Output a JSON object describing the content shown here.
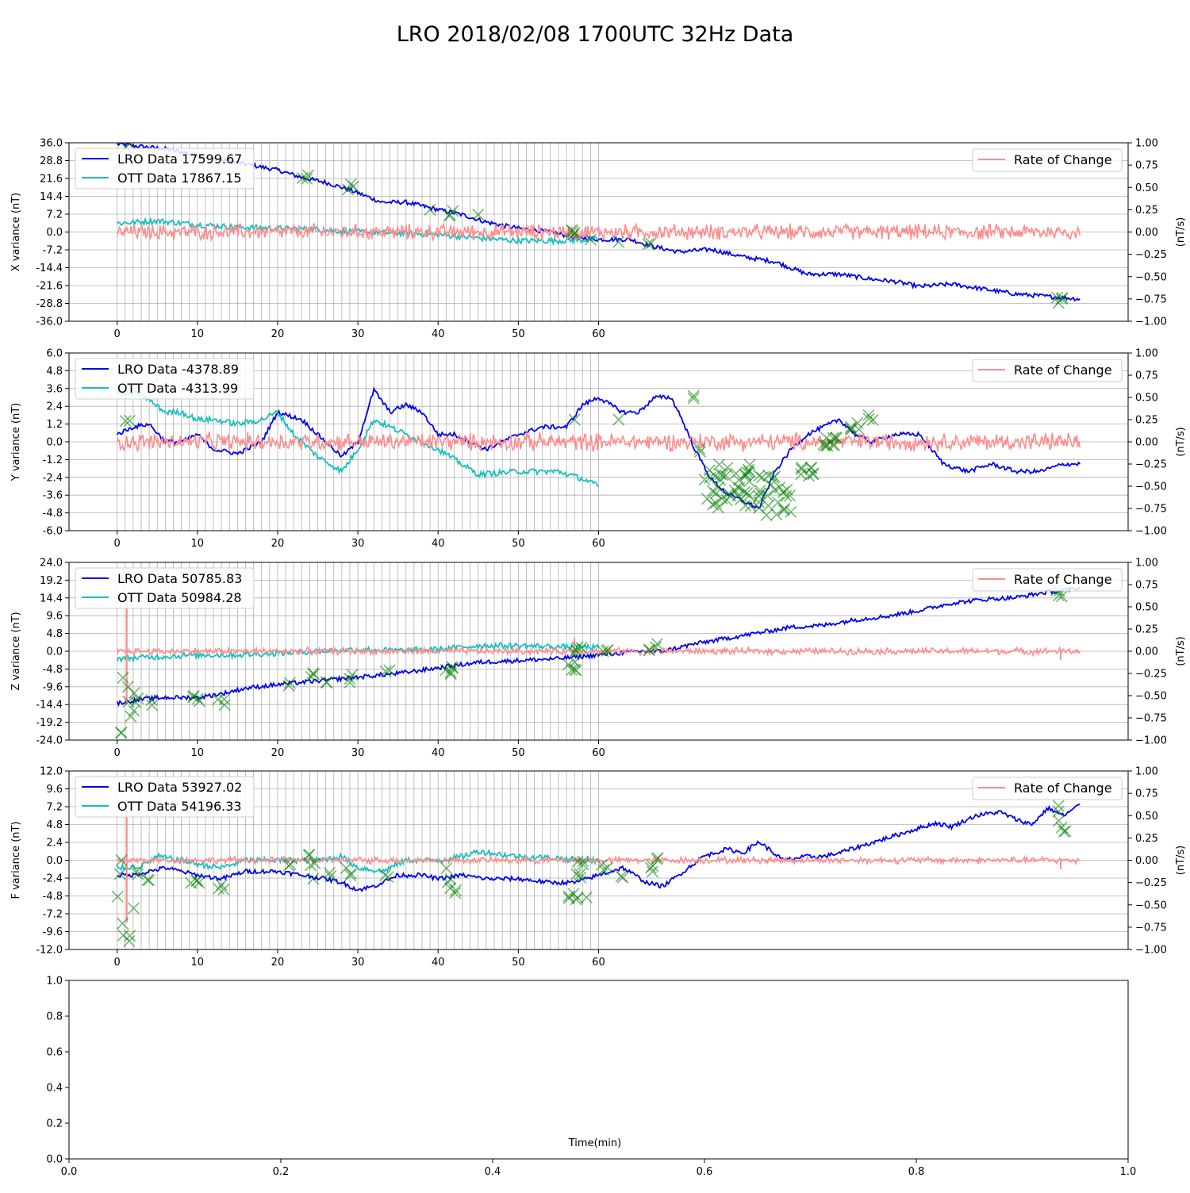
{
  "figure": {
    "title": "LRO 2018/02/08 1700UTC 32Hz Data"
  },
  "colors": {
    "lro": "#0000ee",
    "ott": "#17bfbf",
    "rate": "#ff8c8c",
    "marker": "#008000",
    "grid": "#b0b0b0"
  },
  "chart_data": [
    {
      "type": "line",
      "ylabel": "X variance (nT)",
      "y2label": "(nT/s)",
      "ylim": [
        -36.0,
        36.0
      ],
      "yticks": [
        "36.0",
        "28.8",
        "21.6",
        "14.4",
        "7.2",
        "0.0",
        "-7.2",
        "-14.4",
        "-21.6",
        "-28.8",
        "-36.0"
      ],
      "y2lim": [
        -1.0,
        1.0
      ],
      "y2ticks": [
        "1.00",
        "0.75",
        "0.50",
        "0.25",
        "0.00",
        "−0.25",
        "−0.50",
        "−0.75",
        "−1.00"
      ],
      "xticks": [
        "0",
        "10",
        "20",
        "30",
        "40",
        "50",
        "60"
      ],
      "xlim": [
        -6,
        126
      ],
      "grid": true,
      "legend_left": [
        "LRO Data 17599.67",
        "OTT Data 17867.15"
      ],
      "legend_right": [
        "Rate of Change"
      ],
      "series": [
        {
          "name": "LRO Data 17599.67",
          "role": "lro",
          "x": [
            0,
            3,
            6,
            10,
            15,
            20,
            23,
            26,
            29,
            33,
            36,
            40,
            43,
            46,
            50,
            54,
            57,
            60,
            64,
            67,
            70,
            74,
            78,
            82,
            86,
            90,
            94,
            97,
            100,
            104,
            108,
            112,
            116,
            120
          ],
          "y": [
            35.5,
            34.5,
            33.5,
            31,
            28,
            25,
            22,
            20,
            17,
            12,
            12,
            9,
            7,
            4,
            1.5,
            0,
            -2,
            -3,
            -3,
            -6,
            -8,
            -7,
            -10,
            -12,
            -17,
            -17,
            -19,
            -20,
            -22,
            -21,
            -23,
            -25,
            -26,
            -27
          ]
        },
        {
          "name": "OTT Data 17867.15",
          "role": "ott",
          "x": [
            0,
            5,
            10,
            15,
            20,
            25,
            30,
            35,
            40,
            45,
            50,
            55,
            60
          ],
          "y": [
            3.5,
            4.5,
            3,
            2,
            1.5,
            1,
            0,
            -0.5,
            -1,
            -2.5,
            -3.5,
            -3.5,
            -3
          ]
        },
        {
          "name": "Rate of Change",
          "role": "rate",
          "amplitude": 0.07,
          "xmax": 120,
          "center": 0,
          "spikes": []
        }
      ],
      "markers": [
        {
          "x": 1.4,
          "y": 34.5,
          "n": 2
        },
        {
          "x": 23.5,
          "y": 21.5,
          "n": 3
        },
        {
          "x": 29,
          "y": 17.5,
          "n": 3
        },
        {
          "x": 39,
          "y": 9,
          "n": 1
        },
        {
          "x": 41.5,
          "y": 7,
          "n": 3
        },
        {
          "x": 45,
          "y": 7,
          "n": 1
        },
        {
          "x": 57,
          "y": -1,
          "n": 4
        },
        {
          "x": 59,
          "y": -3,
          "n": 1
        },
        {
          "x": 62.5,
          "y": -4,
          "n": 1
        },
        {
          "x": 66.5,
          "y": -5.5,
          "n": 2
        },
        {
          "x": 117.5,
          "y": -27,
          "n": 4
        }
      ]
    },
    {
      "type": "line",
      "ylabel": "Y variance (nT)",
      "y2label": "(nT/s)",
      "ylim": [
        -6.0,
        6.0
      ],
      "yticks": [
        "6.0",
        "4.8",
        "3.6",
        "2.4",
        "1.2",
        "0.0",
        "-1.2",
        "-2.4",
        "-3.6",
        "-4.8",
        "-6.0"
      ],
      "y2lim": [
        -1.0,
        1.0
      ],
      "y2ticks": [
        "1.00",
        "0.75",
        "0.50",
        "0.25",
        "0.00",
        "−0.25",
        "−0.50",
        "−0.75",
        "−1.00"
      ],
      "xticks": [
        "0",
        "10",
        "20",
        "30",
        "40",
        "50",
        "60"
      ],
      "xlim": [
        -6,
        126
      ],
      "grid": true,
      "legend_left": [
        "LRO Data -4378.89",
        "OTT Data -4313.99"
      ],
      "legend_right": [
        "Rate of Change"
      ],
      "series": [
        {
          "name": "LRO Data -4378.89",
          "role": "lro",
          "x": [
            0,
            2,
            4,
            6,
            8,
            10,
            12,
            15,
            18,
            20,
            23,
            26,
            28,
            30,
            32,
            34,
            36,
            38,
            40,
            42,
            44,
            46,
            48,
            50,
            53,
            56,
            58,
            60,
            63,
            65,
            67,
            69,
            70,
            72,
            74,
            76,
            78,
            80,
            82,
            84,
            86,
            88,
            90,
            92,
            94,
            97,
            100,
            103,
            106,
            109,
            112,
            115,
            118,
            120
          ],
          "y": [
            0.5,
            1,
            1.2,
            0,
            0,
            0.5,
            -0.5,
            -0.8,
            0,
            2,
            1.5,
            0,
            -1,
            0,
            3.5,
            2,
            2.5,
            2,
            0.5,
            0.5,
            0,
            -0.5,
            0,
            0.5,
            1,
            1,
            2.5,
            3,
            2,
            2,
            3,
            3,
            2,
            -0.5,
            -2.5,
            -3.5,
            -4,
            -4.5,
            -2,
            -0.5,
            0.5,
            1,
            1.5,
            0.5,
            0,
            0.5,
            0.5,
            -1.5,
            -2,
            -1.5,
            -2,
            -2,
            -1.5,
            -1.5
          ]
        },
        {
          "name": "OTT Data -4313.99",
          "role": "ott",
          "x": [
            0,
            3,
            6,
            8,
            10,
            12,
            15,
            18,
            20,
            22,
            25,
            28,
            30,
            32,
            34,
            36,
            40,
            45,
            50,
            55,
            58,
            60
          ],
          "y": [
            3.3,
            3.2,
            2,
            2,
            1.5,
            1.5,
            1.2,
            1.5,
            2,
            0.5,
            -1,
            -2,
            -0.5,
            1.5,
            1,
            0.5,
            -0.5,
            -2.2,
            -2,
            -2,
            -2.5,
            -3
          ]
        },
        {
          "name": "Rate of Change",
          "role": "rate",
          "amplitude": 0.08,
          "xmax": 120,
          "center": 0,
          "spikes": []
        }
      ],
      "markers": [
        {
          "x": 1.2,
          "y": 1.6,
          "n": 2
        },
        {
          "x": 57,
          "y": 1.5,
          "n": 1
        },
        {
          "x": 62.5,
          "y": 1.5,
          "n": 1
        },
        {
          "x": 71.5,
          "y": 3,
          "n": 2
        },
        {
          "x": 72.5,
          "y": -0.5,
          "n": 2
        },
        {
          "x": 76,
          "y": -3,
          "n": 40,
          "spread": 3
        },
        {
          "x": 82,
          "y": -3.5,
          "n": 25,
          "spread": 3
        },
        {
          "x": 86,
          "y": -2,
          "n": 8
        },
        {
          "x": 89,
          "y": 0,
          "n": 10
        },
        {
          "x": 92,
          "y": 1,
          "n": 5
        },
        {
          "x": 94,
          "y": 1.6,
          "n": 3
        }
      ]
    },
    {
      "type": "line",
      "ylabel": "Z variance (nT)",
      "y2label": "(nT/s)",
      "ylim": [
        -24.0,
        24.0
      ],
      "yticks": [
        "24.0",
        "19.2",
        "14.4",
        "9.6",
        "4.8",
        "0.0",
        "-4.8",
        "-9.6",
        "-14.4",
        "-19.2",
        "-24.0"
      ],
      "y2lim": [
        -1.0,
        1.0
      ],
      "y2ticks": [
        "1.00",
        "0.75",
        "0.50",
        "0.25",
        "0.00",
        "−0.25",
        "−0.50",
        "−0.75",
        "−1.00"
      ],
      "xticks": [
        "0",
        "10",
        "20",
        "30",
        "40",
        "50",
        "60"
      ],
      "xlim": [
        -6,
        126
      ],
      "grid": true,
      "legend_left": [
        "LRO Data 50785.83",
        "OTT Data 50984.28"
      ],
      "legend_right": [
        "Rate of Change"
      ],
      "series": [
        {
          "name": "LRO Data 50785.83",
          "role": "lro",
          "x": [
            0,
            3,
            6,
            10,
            13,
            16,
            20,
            25,
            30,
            35,
            40,
            45,
            50,
            55,
            60,
            65,
            68,
            72,
            76,
            80,
            84,
            88,
            92,
            96,
            100,
            104,
            108,
            112,
            116,
            120
          ],
          "y": [
            -14,
            -13,
            -12.5,
            -12.5,
            -11.5,
            -10,
            -9,
            -8,
            -7,
            -6,
            -4.5,
            -3,
            -2.5,
            -2,
            -1,
            0,
            0,
            2,
            3.5,
            5,
            6.5,
            7,
            8.5,
            9.5,
            11,
            13,
            14,
            14.5,
            16,
            17
          ]
        },
        {
          "name": "OTT Data 50984.28",
          "role": "ott",
          "x": [
            0,
            5,
            10,
            15,
            20,
            25,
            30,
            35,
            40,
            45,
            50,
            55,
            60
          ],
          "y": [
            -2,
            -1.5,
            -1,
            -1,
            -0.5,
            0,
            0.5,
            0.2,
            0.5,
            1.5,
            1.5,
            1.2,
            1
          ]
        },
        {
          "name": "Rate of Change",
          "role": "rate",
          "amplitude": 0.03,
          "xmax": 120,
          "center": 0,
          "spikes": [
            {
              "x": 1.2,
              "v": 0.6
            },
            {
              "x": 1.2,
              "v": -0.6
            },
            {
              "x": 57,
              "v": 0.15
            },
            {
              "x": 117.6,
              "v": -0.1
            }
          ]
        }
      ],
      "markers": [
        {
          "x": 1.2,
          "y": -18,
          "n": 10,
          "spread": 6
        },
        {
          "x": 2.5,
          "y": -13,
          "n": 2
        },
        {
          "x": 4,
          "y": -13.5,
          "n": 2
        },
        {
          "x": 9.7,
          "y": -13,
          "n": 4
        },
        {
          "x": 13,
          "y": -13.5,
          "n": 3
        },
        {
          "x": 21.5,
          "y": -8.5,
          "n": 2
        },
        {
          "x": 24.3,
          "y": -7,
          "n": 3
        },
        {
          "x": 26.3,
          "y": -9,
          "n": 2
        },
        {
          "x": 29,
          "y": -7.5,
          "n": 3
        },
        {
          "x": 33.8,
          "y": -6,
          "n": 2
        },
        {
          "x": 41.5,
          "y": -5,
          "n": 5
        },
        {
          "x": 56.8,
          "y": -4,
          "n": 5
        },
        {
          "x": 57.5,
          "y": 0,
          "n": 4
        },
        {
          "x": 60.7,
          "y": 0,
          "n": 3
        },
        {
          "x": 66.8,
          "y": 1,
          "n": 4
        },
        {
          "x": 117.6,
          "y": 15.5,
          "n": 4
        }
      ]
    },
    {
      "type": "line",
      "ylabel": "F variance (nT)",
      "y2label": "(nT/s)",
      "ylim": [
        -12.0,
        12.0
      ],
      "yticks": [
        "12.0",
        "9.6",
        "7.2",
        "4.8",
        "2.4",
        "0.0",
        "-2.4",
        "-4.8",
        "-7.2",
        "-9.6",
        "-12.0"
      ],
      "y2lim": [
        -1.0,
        1.0
      ],
      "y2ticks": [
        "1.00",
        "0.75",
        "0.50",
        "0.25",
        "0.00",
        "−0.25",
        "−0.50",
        "−0.75",
        "−1.00"
      ],
      "xticks": [
        "0",
        "10",
        "20",
        "30",
        "40",
        "50",
        "60"
      ],
      "xlim": [
        -6,
        126
      ],
      "grid": true,
      "legend_left": [
        "LRO Data 53927.02",
        "OTT Data 54196.33"
      ],
      "legend_right": [
        "Rate of Change"
      ],
      "series": [
        {
          "name": "LRO Data 53927.02",
          "role": "lro",
          "x": [
            0,
            2,
            4,
            6,
            8,
            10,
            13,
            16,
            20,
            23,
            26,
            28,
            30,
            32,
            35,
            38,
            40,
            43,
            46,
            50,
            54,
            57,
            60,
            63,
            66,
            68,
            70,
            73,
            76,
            78,
            80,
            83,
            86,
            88,
            90,
            93,
            96,
            99,
            102,
            104,
            107,
            110,
            112,
            114,
            116,
            118,
            120
          ],
          "y": [
            -2,
            -2,
            -1.5,
            -1,
            -1.5,
            -2,
            -2.5,
            -1.5,
            -1.5,
            -2,
            -2.5,
            -3,
            -4,
            -3.5,
            -2,
            -2,
            -2.5,
            -2,
            -2.5,
            -2.5,
            -3,
            -3,
            -2,
            -1,
            -3,
            -3.5,
            -2,
            0.5,
            1.5,
            1,
            2.5,
            0,
            0.5,
            0.5,
            1,
            2,
            3,
            4,
            5,
            4.5,
            6,
            6.5,
            5.5,
            4.8,
            7,
            6,
            7.5
          ]
        },
        {
          "name": "OTT Data 54196.33",
          "role": "ott",
          "x": [
            0,
            3,
            5,
            8,
            10,
            13,
            16,
            20,
            25,
            28,
            30,
            33,
            36,
            40,
            43,
            45,
            50,
            55,
            57,
            60
          ],
          "y": [
            -1,
            -0.8,
            0.5,
            0,
            -0.5,
            -1,
            0,
            0,
            0,
            0.5,
            -1,
            -1.5,
            0,
            0,
            0.5,
            1.2,
            0.5,
            0.3,
            0,
            0
          ]
        },
        {
          "name": "Rate of Change",
          "role": "rate",
          "amplitude": 0.03,
          "xmax": 120,
          "center": 0,
          "spikes": [
            {
              "x": 1.2,
              "v": 0.6
            },
            {
              "x": 1.2,
              "v": -0.7
            },
            {
              "x": 117.6,
              "v": -0.1
            }
          ]
        }
      ],
      "markers": [
        {
          "x": 1.2,
          "y": -7,
          "n": 12,
          "spread": 7
        },
        {
          "x": 2.5,
          "y": -2,
          "n": 2
        },
        {
          "x": 4,
          "y": -2.3,
          "n": 2
        },
        {
          "x": 9.7,
          "y": -3,
          "n": 4
        },
        {
          "x": 13,
          "y": -3.5,
          "n": 3
        },
        {
          "x": 21.5,
          "y": -1,
          "n": 2
        },
        {
          "x": 24.3,
          "y": 0,
          "n": 5,
          "spread": 3
        },
        {
          "x": 26.3,
          "y": -2,
          "n": 2
        },
        {
          "x": 29,
          "y": -1.5,
          "n": 3
        },
        {
          "x": 33.8,
          "y": -2,
          "n": 2
        },
        {
          "x": 41.5,
          "y": -2.5,
          "n": 6,
          "spread": 2
        },
        {
          "x": 56.8,
          "y": -5,
          "n": 5
        },
        {
          "x": 57.5,
          "y": -1,
          "n": 6,
          "spread": 2
        },
        {
          "x": 58.5,
          "y": -5,
          "n": 1
        },
        {
          "x": 60.7,
          "y": -1,
          "n": 3
        },
        {
          "x": 63,
          "y": -2.5,
          "n": 2
        },
        {
          "x": 66.8,
          "y": -1.5,
          "n": 5,
          "spread": 2
        },
        {
          "x": 117.6,
          "y": 5,
          "n": 6,
          "spread": 3
        }
      ]
    },
    {
      "type": "line",
      "xlabel": "Time(min)",
      "xlim": [
        0.0,
        1.0
      ],
      "ylim": [
        0.0,
        1.0
      ],
      "xticks": [
        "0.0",
        "0.2",
        "0.4",
        "0.6",
        "0.8",
        "1.0"
      ],
      "yticks": [
        "1.0",
        "0.8",
        "0.6",
        "0.4",
        "0.2",
        "0.0"
      ],
      "grid": false,
      "series": []
    }
  ]
}
